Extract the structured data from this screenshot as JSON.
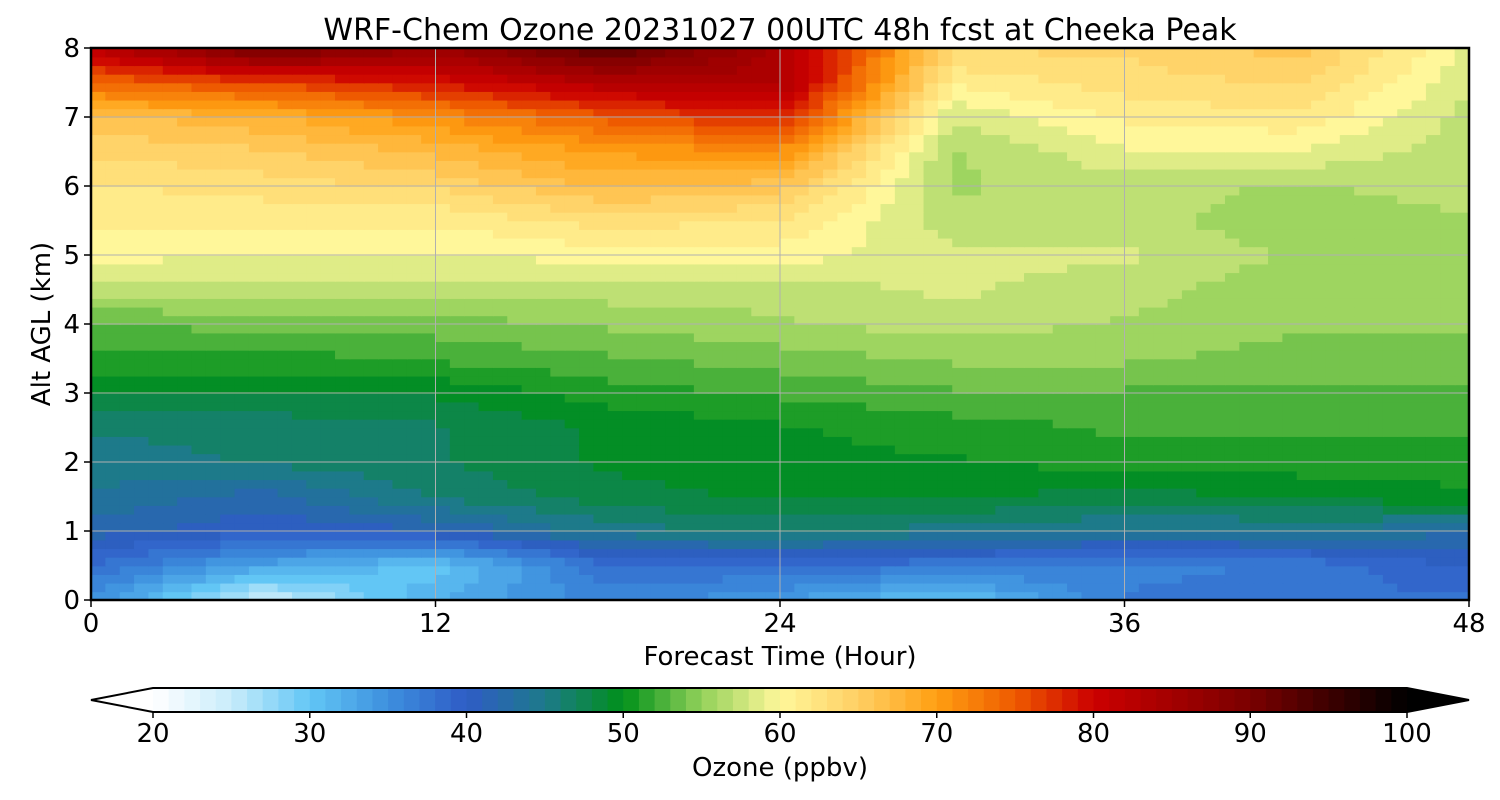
{
  "chart_data": {
    "type": "heatmap",
    "title": "WRF-Chem Ozone  20231027 00UTC 48h fcst at Cheeka Peak",
    "xlabel": "Forecast Time (Hour)",
    "ylabel": "Alt AGL (km)",
    "xlim": [
      0,
      48
    ],
    "ylim": [
      0,
      8
    ],
    "xticks": [
      0,
      12,
      24,
      36,
      48
    ],
    "yticks": [
      0,
      1,
      2,
      3,
      4,
      5,
      6,
      7,
      8
    ],
    "grid": true,
    "x": [
      0,
      6,
      12,
      18,
      24,
      30,
      36,
      42,
      48
    ],
    "y": [
      0,
      0.5,
      1,
      1.5,
      2,
      2.5,
      3,
      3.5,
      4,
      4.5,
      5,
      5.5,
      6,
      6.5,
      7,
      7.5,
      8
    ],
    "z": [
      [
        35,
        24,
        32,
        36,
        34,
        30,
        37,
        38,
        38
      ],
      [
        38,
        33,
        30,
        38,
        38,
        37,
        36,
        37,
        40
      ],
      [
        42,
        40,
        41,
        45,
        46,
        45,
        44,
        44,
        43
      ],
      [
        44,
        42,
        46,
        48,
        49,
        49,
        48,
        49,
        50
      ],
      [
        45,
        46,
        47,
        49,
        50,
        50,
        51,
        51,
        51
      ],
      [
        46,
        46,
        47,
        49,
        50,
        51,
        52,
        52,
        52
      ],
      [
        49,
        49,
        49,
        51,
        52,
        53,
        53,
        53,
        53
      ],
      [
        51,
        51,
        52,
        53,
        54,
        55,
        55,
        54,
        54
      ],
      [
        53,
        54,
        54,
        55,
        56,
        57,
        56,
        55,
        55
      ],
      [
        57,
        57,
        57,
        57,
        57,
        58,
        57,
        55,
        55
      ],
      [
        60,
        59,
        59,
        60,
        60,
        58,
        58,
        56,
        55
      ],
      [
        61,
        61,
        61,
        63,
        62,
        57,
        57,
        55,
        56
      ],
      [
        62,
        63,
        64,
        67,
        66,
        56,
        57,
        56,
        57
      ],
      [
        64,
        65,
        67,
        70,
        71,
        56,
        59,
        59,
        57
      ],
      [
        66,
        68,
        71,
        75,
        78,
        58,
        61,
        62,
        57
      ],
      [
        74,
        76,
        79,
        83,
        84,
        61,
        63,
        64,
        58
      ],
      [
        82,
        91,
        86,
        93,
        84,
        64,
        64,
        66,
        59
      ]
    ],
    "colorbar": {
      "label": "Ozone  (ppbv)",
      "min": 20,
      "max": 100,
      "ticks": [
        20,
        30,
        40,
        50,
        60,
        70,
        80,
        90,
        100
      ],
      "extend": "both",
      "colors": [
        {
          "v": 20,
          "c": "#ffffff"
        },
        {
          "v": 25,
          "c": "#c8ecfa"
        },
        {
          "v": 30,
          "c": "#62c6f5"
        },
        {
          "v": 35,
          "c": "#3d8fde"
        },
        {
          "v": 40,
          "c": "#2f5cc6"
        },
        {
          "v": 45,
          "c": "#1d7a8a"
        },
        {
          "v": 50,
          "c": "#00901a"
        },
        {
          "v": 55,
          "c": "#93d15a"
        },
        {
          "v": 60,
          "c": "#fff79a"
        },
        {
          "v": 65,
          "c": "#ffcf63"
        },
        {
          "v": 70,
          "c": "#ff9f12"
        },
        {
          "v": 75,
          "c": "#ee5a00"
        },
        {
          "v": 80,
          "c": "#cc0000"
        },
        {
          "v": 90,
          "c": "#7a0000"
        },
        {
          "v": 100,
          "c": "#000000"
        }
      ]
    }
  }
}
